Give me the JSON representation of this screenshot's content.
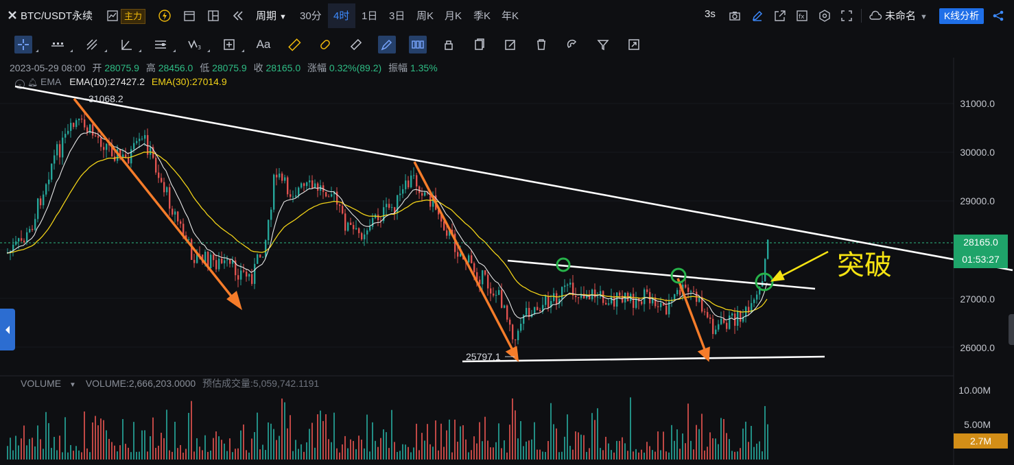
{
  "header": {
    "symbol": "BTC/USDT永续",
    "main_badge": "主力",
    "period_label": "周期",
    "intervals": [
      "30分",
      "4时",
      "1日",
      "3日",
      "周K",
      "月K",
      "季K",
      "年K"
    ],
    "active_interval": "4时",
    "refresh": "3s",
    "layout_name": "未命名",
    "analysis_button": "K线分析"
  },
  "ohlc": {
    "datetime": "2023-05-29 08:00",
    "open_label": "开",
    "open": "28075.9",
    "high_label": "高",
    "high": "28456.0",
    "low_label": "低",
    "low": "28075.9",
    "close_label": "收",
    "close": "28165.0",
    "change_label": "涨幅",
    "change": "0.32%(89.2)",
    "amp_label": "振幅",
    "amp": "1.35%"
  },
  "indicators": {
    "ema_name": "EMA",
    "ema10": "EMA(10):27427.2",
    "ema30": "EMA(30):27014.9",
    "ema10_color": "#e8e8e8",
    "ema30_color": "#f2d318"
  },
  "annotations": {
    "high_mark": "31068.2",
    "low_mark": "25797.1",
    "breakout_text": "突破"
  },
  "price_axis": {
    "labels": [
      "31000.0",
      "30000.0",
      "29000.0",
      "27000.0",
      "26000.0"
    ],
    "current_price": "28165.0",
    "countdown": "01:53:27"
  },
  "volume": {
    "title": "VOLUME",
    "value_text": "VOLUME:2,666,203.0000",
    "estimate_text": "预估成交量:5,059,742.1191",
    "axis_labels": [
      "10.00M",
      "5.00M"
    ],
    "current_volume": "2.7M"
  },
  "colors": {
    "up": "#26a69a",
    "down": "#e0524f",
    "trendline": "#ffffff",
    "arrow": "#f57c2a",
    "circle": "#27b34a",
    "breakout": "#f5e312"
  }
}
